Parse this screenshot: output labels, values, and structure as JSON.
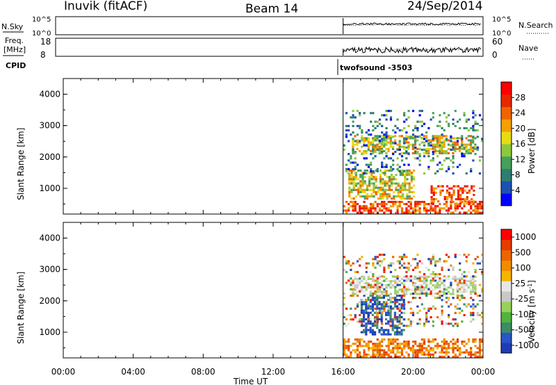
{
  "header": {
    "station": "Inuvik (fitACF)",
    "beam": "Beam 14",
    "date": "24/Sep/2014"
  },
  "nsky_panel": {
    "left_label": "N.Sky",
    "right_label": "N.Search",
    "left_ticks": [
      "10^5",
      "10^0"
    ],
    "right_ticks": [
      "10^5",
      "10^0"
    ]
  },
  "freq_panel": {
    "left_label": "Freq.",
    "left_unit": "[MHz]",
    "right_label": "Nave",
    "left_ticks": [
      "18",
      "8"
    ],
    "right_ticks": [
      "60",
      "0"
    ]
  },
  "cpid": {
    "label": "CPID",
    "annotation": "twofsound -3503"
  },
  "x_axis": {
    "label": "Time UT",
    "ticks": [
      "00:00",
      "04:00",
      "08:00",
      "12:00",
      "16:00",
      "20:00",
      "00:00"
    ]
  },
  "colors": {
    "power_scale": [
      "#0000ff",
      "#1e50b4",
      "#2e7d6e",
      "#44a05a",
      "#8cc83c",
      "#e6dc14",
      "#f5a000",
      "#f06400",
      "#e62800",
      "#ff0000"
    ],
    "velocity_scale": [
      "#1e3cb4",
      "#2855c8",
      "#3c8c64",
      "#50b43c",
      "#96d25a",
      "#c8c8c8",
      "#e6e6e6",
      "#f5b400",
      "#f08c00",
      "#eb6400",
      "#e63c00",
      "#ff0000"
    ]
  },
  "chart_data": [
    {
      "type": "heatmap",
      "title": "",
      "xlabel": "Time UT",
      "ylabel": "Slant Range [km]",
      "ylim": [
        180,
        4500
      ],
      "x_range_hours": [
        0,
        24
      ],
      "y_ticks": [
        1000,
        2000,
        3000,
        4000
      ],
      "colorbar": {
        "label": "Power [dB]",
        "ticks": [
          "4",
          "8",
          "12",
          "16",
          "20",
          "24",
          "28"
        ],
        "range": [
          0,
          30
        ]
      },
      "data_start_hour": 16,
      "regions": [
        {
          "t": [
            16.0,
            24.0
          ],
          "r": [
            200,
            600
          ],
          "level": "high"
        },
        {
          "t": [
            21.0,
            23.5
          ],
          "r": [
            500,
            1100
          ],
          "level": "high"
        },
        {
          "t": [
            16.3,
            20.0
          ],
          "r": [
            700,
            1600
          ],
          "level": "medium"
        },
        {
          "t": [
            16.5,
            23.5
          ],
          "r": [
            2100,
            2700
          ],
          "level": "medium"
        },
        {
          "t": [
            16.0,
            24.0
          ],
          "r": [
            1500,
            3500
          ],
          "level": "low"
        }
      ]
    },
    {
      "type": "heatmap",
      "title": "",
      "xlabel": "Time UT",
      "ylabel": "Slant Range [km]",
      "ylim": [
        180,
        4500
      ],
      "x_range_hours": [
        0,
        24
      ],
      "y_ticks": [
        1000,
        2000,
        3000,
        4000
      ],
      "colorbar": {
        "label": "Velocity [m s^-1]",
        "ticks": [
          "1000",
          "500",
          "100",
          "25",
          "-25",
          "-100",
          "-500",
          "-1000"
        ],
        "range": [
          -1000,
          1000
        ]
      },
      "data_start_hour": 16,
      "regions": [
        {
          "t": [
            16.0,
            24.0
          ],
          "r": [
            200,
            800
          ],
          "level": "negative"
        },
        {
          "t": [
            17.0,
            19.5
          ],
          "r": [
            900,
            2200
          ],
          "level": "positive"
        },
        {
          "t": [
            16.5,
            23.5
          ],
          "r": [
            2200,
            2800
          ],
          "level": "near-zero"
        },
        {
          "t": [
            16.0,
            24.0
          ],
          "r": [
            1200,
            3500
          ],
          "level": "mixed"
        }
      ]
    }
  ]
}
